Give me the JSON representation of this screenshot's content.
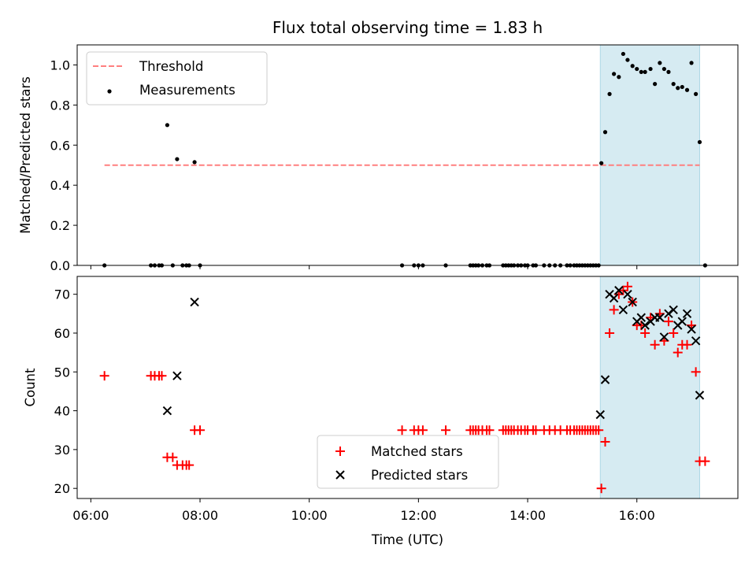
{
  "chart_data": [
    {
      "type": "scatter",
      "title": "Flux total observing time = 1.83 h",
      "xlabel": "",
      "ylabel": "Matched/Predicted stars",
      "ylim": [
        0,
        1.1
      ],
      "yticks": [
        "0.0",
        "0.2",
        "0.4",
        "0.6",
        "0.8",
        "1.0"
      ],
      "xlim_hours": [
        5.75,
        17.85
      ],
      "shaded_region_hours": [
        15.33,
        17.15
      ],
      "shade_color": "#add8e6",
      "threshold": {
        "name": "Threshold",
        "value": 0.5,
        "x_range_hours": [
          6.25,
          17.15
        ],
        "color": "#ff7f7f"
      },
      "legend": [
        "Threshold",
        "Measurements"
      ],
      "legend_placement": "upper-left",
      "series": [
        {
          "name": "Measurements",
          "color": "#000000",
          "x_hours": [
            6.25,
            7.1,
            7.17,
            7.25,
            7.3,
            7.4,
            7.5,
            7.58,
            7.68,
            7.75,
            7.8,
            7.9,
            8.0,
            11.7,
            11.92,
            12.0,
            12.08,
            12.5,
            12.95,
            13.0,
            13.05,
            13.1,
            13.17,
            13.25,
            13.3,
            13.55,
            13.6,
            13.65,
            13.7,
            13.75,
            13.82,
            13.88,
            13.95,
            14.0,
            14.1,
            14.15,
            14.3,
            14.4,
            14.5,
            14.6,
            14.72,
            14.78,
            14.85,
            14.9,
            14.95,
            15.0,
            15.05,
            15.1,
            15.15,
            15.2,
            15.25,
            15.3,
            15.35,
            15.42,
            15.5,
            15.58,
            15.67,
            15.75,
            15.83,
            15.92,
            16.0,
            16.08,
            16.15,
            16.25,
            16.33,
            16.42,
            16.5,
            16.58,
            16.67,
            16.75,
            16.83,
            16.92,
            17.0,
            17.08,
            17.15,
            17.25
          ],
          "y": [
            0,
            0,
            0,
            0,
            0,
            0.7,
            0,
            0.53,
            0,
            0,
            0,
            0.515,
            0,
            0,
            0,
            0,
            0,
            0,
            0,
            0,
            0,
            0,
            0,
            0,
            0,
            0,
            0,
            0,
            0,
            0,
            0,
            0,
            0,
            0,
            0,
            0,
            0,
            0,
            0,
            0,
            0,
            0,
            0,
            0,
            0,
            0,
            0,
            0,
            0,
            0,
            0,
            0,
            0.51,
            0.665,
            0.855,
            0.955,
            0.94,
            1.055,
            1.025,
            0.995,
            0.98,
            0.965,
            0.965,
            0.98,
            0.905,
            1.01,
            0.98,
            0.965,
            0.905,
            0.885,
            0.89,
            0.875,
            1.01,
            0.855,
            0.615,
            0
          ]
        }
      ]
    },
    {
      "type": "scatter",
      "title": "",
      "xlabel": "Time (UTC)",
      "ylabel": "Count",
      "ylim": [
        17.4,
        74.6
      ],
      "yticks": [
        "20",
        "30",
        "40",
        "50",
        "60",
        "70"
      ],
      "xticks": [
        "06:00",
        "08:00",
        "10:00",
        "12:00",
        "14:00",
        "16:00"
      ],
      "xtick_hours": [
        6,
        8,
        10,
        12,
        14,
        16
      ],
      "xlim_hours": [
        5.75,
        17.85
      ],
      "shaded_region_hours": [
        15.33,
        17.15
      ],
      "legend": [
        "Matched stars",
        "Predicted stars"
      ],
      "legend_placement": "lower-center",
      "series": [
        {
          "name": "Matched stars",
          "marker": "+",
          "color": "#ff0000",
          "x_hours": [
            6.25,
            7.1,
            7.17,
            7.25,
            7.3,
            7.4,
            7.5,
            7.58,
            7.68,
            7.75,
            7.8,
            7.9,
            8.0,
            11.7,
            11.92,
            12.0,
            12.08,
            12.5,
            12.95,
            13.0,
            13.05,
            13.1,
            13.17,
            13.25,
            13.3,
            13.55,
            13.6,
            13.65,
            13.7,
            13.75,
            13.82,
            13.88,
            13.95,
            14.0,
            14.1,
            14.15,
            14.3,
            14.4,
            14.5,
            14.6,
            14.72,
            14.78,
            14.85,
            14.9,
            14.95,
            15.0,
            15.05,
            15.1,
            15.15,
            15.2,
            15.25,
            15.3,
            15.35,
            15.42,
            15.5,
            15.58,
            15.67,
            15.75,
            15.83,
            15.92,
            16.0,
            16.08,
            16.15,
            16.25,
            16.33,
            16.42,
            16.5,
            16.58,
            16.67,
            16.75,
            16.83,
            16.92,
            17.0,
            17.08,
            17.15,
            17.25
          ],
          "y": [
            49,
            49,
            49,
            49,
            49,
            28,
            28,
            26,
            26,
            26,
            26,
            35,
            35,
            35,
            35,
            35,
            35,
            35,
            35,
            35,
            35,
            35,
            35,
            35,
            35,
            35,
            35,
            35,
            35,
            35,
            35,
            35,
            35,
            35,
            35,
            35,
            35,
            35,
            35,
            35,
            35,
            35,
            35,
            35,
            35,
            35,
            35,
            35,
            35,
            35,
            35,
            35,
            20,
            32,
            60,
            66,
            70,
            71,
            72,
            68,
            62,
            62,
            60,
            64,
            57,
            65,
            58,
            63,
            60,
            55,
            57,
            57,
            62,
            50,
            27,
            27
          ]
        },
        {
          "name": "Predicted stars",
          "marker": "x",
          "color": "#000000",
          "x_hours": [
            7.4,
            7.58,
            7.9,
            15.33,
            15.42,
            15.5,
            15.58,
            15.67,
            15.75,
            15.83,
            15.92,
            16.0,
            16.08,
            16.15,
            16.25,
            16.33,
            16.42,
            16.5,
            16.58,
            16.67,
            16.75,
            16.83,
            16.92,
            17.0,
            17.08,
            17.15
          ],
          "y": [
            40,
            49,
            68,
            39,
            48,
            70,
            69,
            71,
            66,
            70,
            68,
            63,
            64,
            62,
            63,
            64,
            64,
            59,
            65,
            66,
            62,
            63,
            65,
            61,
            58,
            44
          ]
        }
      ]
    }
  ]
}
